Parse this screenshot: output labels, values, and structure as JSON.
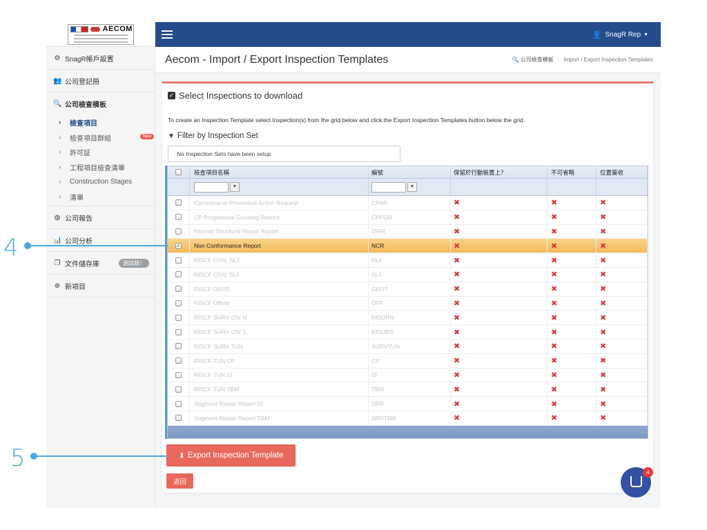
{
  "logo": {
    "text": "AECOM"
  },
  "topbar": {
    "user": "SnagR Rep"
  },
  "page": {
    "title": "Aecom - Import / Export Inspection Templates",
    "breadcrumb": [
      "公司檢查模板",
      "Import / Export Inspection Templates"
    ]
  },
  "sidebar": {
    "items": [
      {
        "label": "SnagR帳戶設置",
        "icon": "gear-icon"
      },
      {
        "label": "公司登記冊",
        "icon": "users-icon"
      },
      {
        "label": "公司檢查模板",
        "icon": "search-icon"
      }
    ],
    "subitems": [
      {
        "label": "檢查項目",
        "active": true
      },
      {
        "label": "檢查項目群組",
        "badge": "New"
      },
      {
        "label": "許可証"
      },
      {
        "label": "工程項目檢查清單"
      },
      {
        "label": "Construction Stages"
      },
      {
        "label": "清單"
      }
    ],
    "lower_items": [
      {
        "label": "公司報告",
        "icon": "globe-icon"
      },
      {
        "label": "公司分析",
        "icon": "bar-chart-icon"
      },
      {
        "label": "文件儲存庫",
        "icon": "documents-icon",
        "badge": "測試版！"
      },
      {
        "label": "新項目",
        "icon": "plus-circle-icon"
      }
    ]
  },
  "card": {
    "title": "Select Inspections to download",
    "description": "To create an Inspection Template select Inspection(s) from the grid below and click the Export Inspection Templates button below the grid.",
    "filter_title": "Filter by Inspection Set",
    "inspection_set_value": "No Inspection Sets have been setup"
  },
  "grid": {
    "columns": [
      "檢查項目名稱",
      "編號",
      "保留於行動裝置上？",
      "不可省略",
      "位置簽收"
    ],
    "rows": [
      {
        "name": "Corrective or Preventive Action Request",
        "code": "CPAR",
        "selected": false
      },
      {
        "name": "CP Progressive Grouting Record",
        "code": "CPPGR",
        "selected": false
      },
      {
        "name": "Internal Structural Repair Report",
        "code": "ISRR",
        "selected": false
      },
      {
        "name": "Non Conformance Report",
        "code": "NCR",
        "selected": true
      },
      {
        "name": "RISCF CIVIL NLF",
        "code": "NLF",
        "selected": false
      },
      {
        "name": "RISCF CIVIL SLF",
        "code": "SLF",
        "selected": false
      },
      {
        "name": "RISCF GEOT",
        "code": "GEOT",
        "selected": false
      },
      {
        "name": "RISCF Offsite",
        "code": "OFF",
        "selected": false
      },
      {
        "name": "RISCF SURV CIV N",
        "code": "RISURN",
        "selected": false
      },
      {
        "name": "RISCF SURV CIV S",
        "code": "RISURS",
        "selected": false
      },
      {
        "name": "RISCF SURV TUN",
        "code": "SURVTUN",
        "selected": false
      },
      {
        "name": "RISCF TUN CP",
        "code": "CP",
        "selected": false
      },
      {
        "name": "RISCF TUN IS",
        "code": "IS",
        "selected": false
      },
      {
        "name": "RISCF TUN TBM",
        "code": "TBM",
        "selected": false
      },
      {
        "name": "Segment Repair Report IS",
        "code": "SRR",
        "selected": false
      },
      {
        "name": "Segment Repair Report TBM",
        "code": "SRRTBM",
        "selected": false
      }
    ]
  },
  "buttons": {
    "export": "Export Inspection Template",
    "back": "返回"
  },
  "chat": {
    "badge": "4"
  },
  "callouts": [
    "4",
    "5"
  ],
  "colors": {
    "navbar": "#244b8c",
    "accent": "#e8685c",
    "selected_row": "#f4b95a",
    "callout": "#4aa8dc"
  }
}
